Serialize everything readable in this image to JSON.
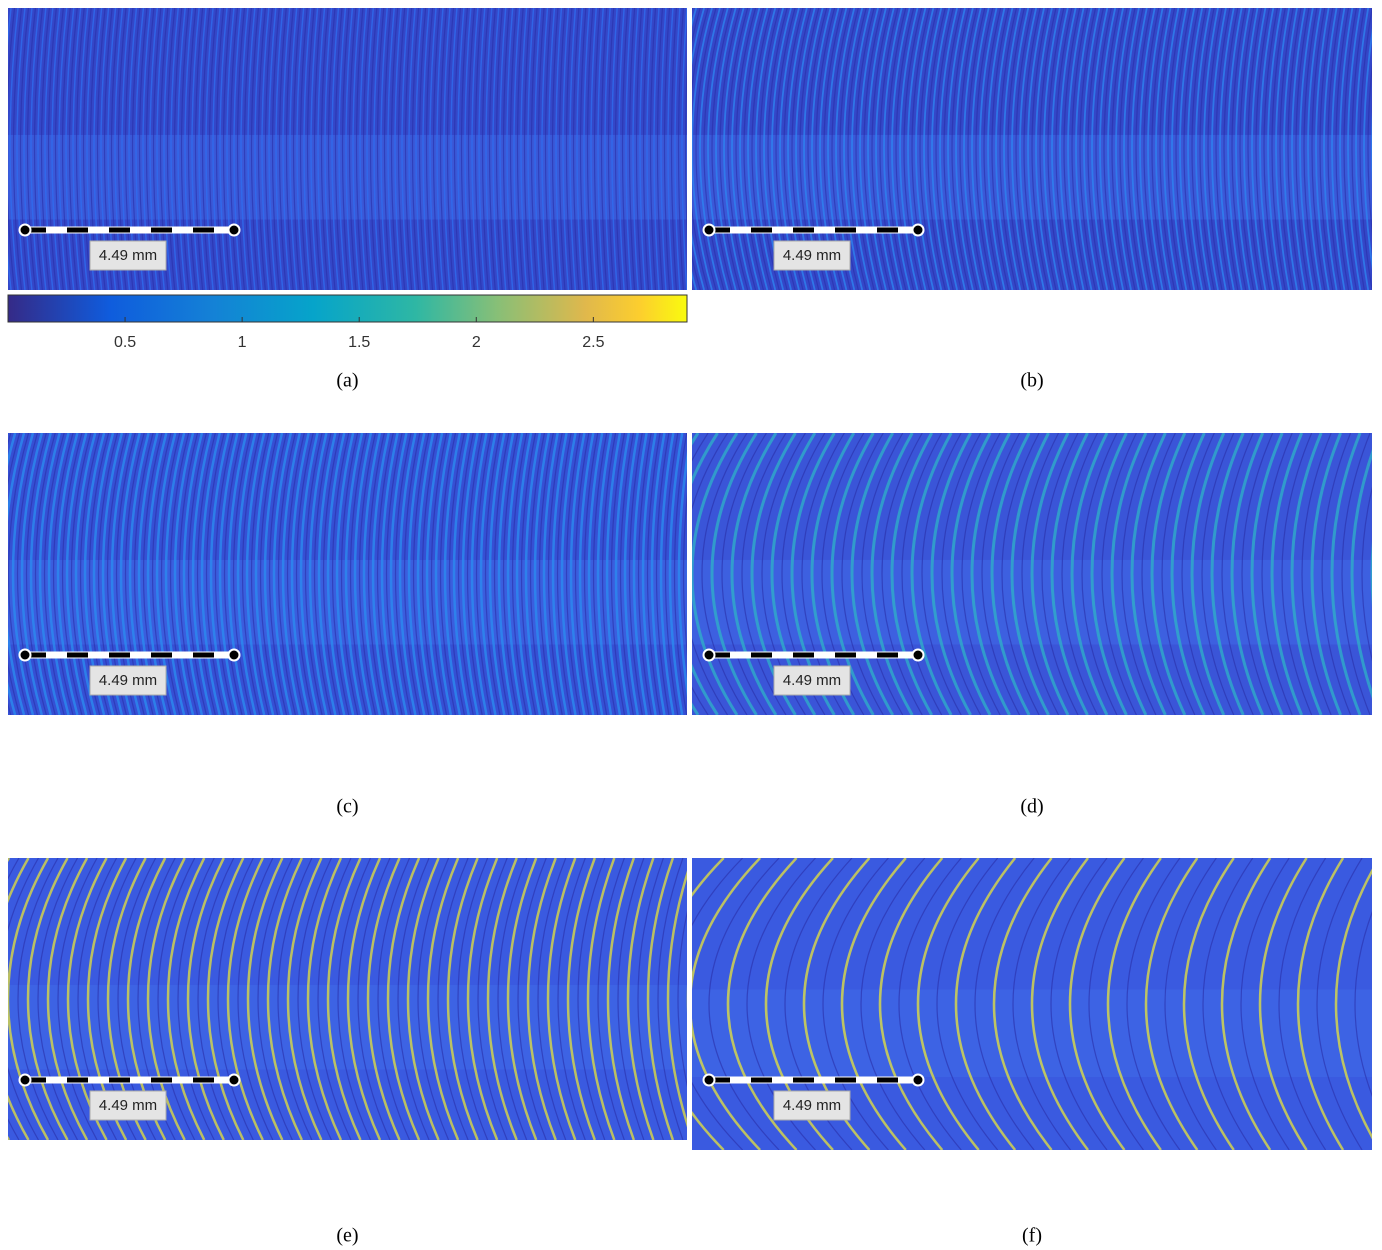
{
  "panels": [
    {
      "label": "(a)",
      "scale_label": "4.49 mm"
    },
    {
      "label": "(b)",
      "scale_label": "4.49 mm"
    },
    {
      "label": "(c)",
      "scale_label": "4.49 mm"
    },
    {
      "label": "(d)",
      "scale_label": "4.49 mm"
    },
    {
      "label": "(e)",
      "scale_label": "4.49 mm"
    },
    {
      "label": "(f)",
      "scale_label": "4.49 mm"
    }
  ],
  "colorbar": {
    "range": [
      0,
      2.9
    ],
    "ticks": [
      0.5,
      1,
      1.5,
      2,
      2.5
    ]
  }
}
